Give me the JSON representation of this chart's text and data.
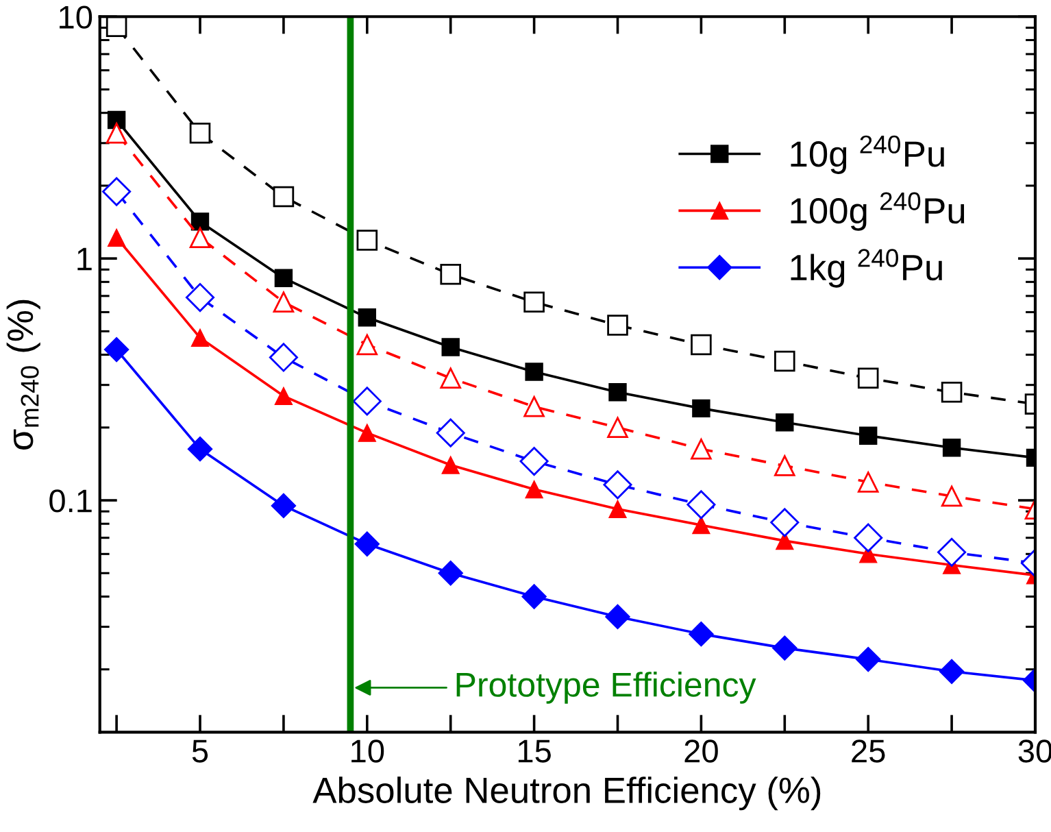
{
  "chart_data": {
    "type": "line",
    "xlabel": "Absolute Neutron Efficiency (%)",
    "ylabel": "σ$_{m240}$ (%)",
    "x": [
      2.5,
      5,
      7.5,
      10,
      12.5,
      15,
      17.5,
      20,
      22.5,
      25,
      27.5,
      30
    ],
    "series": [
      {
        "name": "10g $^{240}$Pu",
        "color": "#000000",
        "marker": "square",
        "line_style": "solid",
        "values": [
          3.74,
          1.42,
          0.83,
          0.57,
          0.43,
          0.34,
          0.28,
          0.24,
          0.21,
          0.185,
          0.165,
          0.15
        ]
      },
      {
        "name": "100g $^{240}$Pu",
        "color": "#ff0000",
        "marker": "triangle",
        "line_style": "solid",
        "values": [
          1.22,
          0.47,
          0.27,
          0.19,
          0.14,
          0.111,
          0.092,
          0.079,
          0.068,
          0.06,
          0.054,
          0.049
        ]
      },
      {
        "name": "1kg $^{240}$Pu",
        "color": "#0000ff",
        "marker": "diamond",
        "line_style": "solid",
        "values": [
          0.42,
          0.163,
          0.095,
          0.066,
          0.05,
          0.04,
          0.033,
          0.028,
          0.0245,
          0.022,
          0.0196,
          0.018
        ]
      },
      {
        "color": "#000000",
        "marker": "square",
        "line_style": "dashed",
        "values": [
          9.1,
          3.3,
          1.8,
          1.19,
          0.86,
          0.66,
          0.53,
          0.44,
          0.376,
          0.32,
          0.28,
          0.25
        ]
      },
      {
        "color": "#ff0000",
        "marker": "triangle",
        "line_style": "dashed",
        "values": [
          3.3,
          1.22,
          0.66,
          0.44,
          0.32,
          0.244,
          0.2,
          0.163,
          0.139,
          0.119,
          0.104,
          0.092
        ]
      },
      {
        "color": "#0000ff",
        "marker": "diamond",
        "line_style": "dashed",
        "values": [
          1.89,
          0.69,
          0.39,
          0.257,
          0.19,
          0.145,
          0.116,
          0.096,
          0.081,
          0.07,
          0.061,
          0.055
        ]
      }
    ],
    "log": "y",
    "xlim": [
      2,
      30
    ],
    "xticks": [
      {
        "value": 2.5,
        "label": null
      },
      5,
      {
        "value": 7.5,
        "label": null
      },
      10,
      {
        "value": 12.5,
        "label": null
      },
      15,
      {
        "value": 17.5,
        "label": null
      },
      20,
      {
        "value": 22.5,
        "label": null
      },
      25,
      {
        "value": 27.5,
        "label": null
      },
      30
    ],
    "ylim": [
      0.011,
      10
    ],
    "yticks": [
      0.1,
      1,
      10
    ],
    "ref_lines": [
      {
        "axis": "x",
        "value": 9.5,
        "color": "#008000"
      }
    ],
    "annotations": [
      {
        "text": "Prototype Efficiency",
        "x": 9.5,
        "y": 0.0168
      }
    ],
    "legend": "top right",
    "grid": false
  }
}
